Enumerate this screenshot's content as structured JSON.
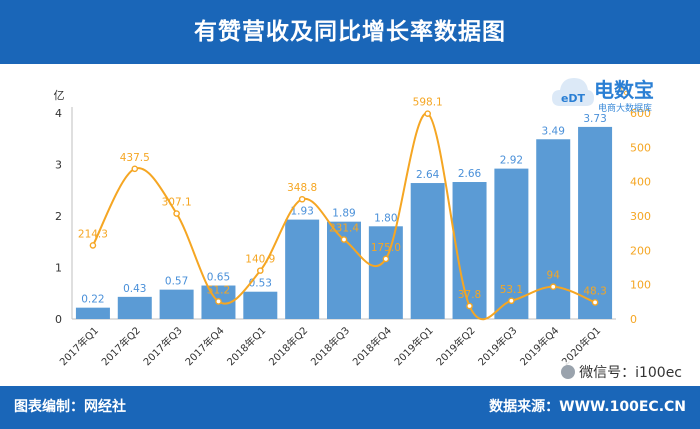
{
  "title": "有赞营收及同比增长率数据图",
  "footer": {
    "source_left": "图表编制：网经社",
    "source_right": "数据来源：WWW.100EC.CN",
    "wechat": "微信号：i100ec"
  },
  "logo": {
    "main": "电数宝",
    "sub": "电商大数据库",
    "mark": "eDT"
  },
  "colors": {
    "header": "#1a66b8",
    "bar": "#5b9bd5",
    "line": "#f5a623",
    "bar_label": "#4a90d9",
    "line_label": "#f5a623"
  },
  "chart_data": {
    "type": "bar",
    "categories": [
      "2017年Q1",
      "2017年Q2",
      "2017年Q3",
      "2017年Q4",
      "2018年Q1",
      "2018年Q2",
      "2018年Q3",
      "2018年Q4",
      "2019年Q1",
      "2019年Q2",
      "2019年Q3",
      "2019年Q4",
      "2020年Q1"
    ],
    "series": [
      {
        "type": "bar",
        "axis": "left",
        "values": [
          0.22,
          0.43,
          0.57,
          0.65,
          0.53,
          1.93,
          1.89,
          1.8,
          2.64,
          2.66,
          2.92,
          3.49,
          3.73
        ],
        "labels": [
          "0.22",
          "0.43",
          "0.57",
          "0.65",
          "0.53",
          "1.93",
          "1.89",
          "1.80",
          "2.64",
          "2.66",
          "2.92",
          "3.49",
          "3.73"
        ]
      },
      {
        "type": "line",
        "axis": "right",
        "smooth": true,
        "values": [
          214.3,
          437.5,
          307.1,
          51.2,
          140.9,
          348.8,
          231.4,
          175.0,
          598.1,
          37.8,
          53.1,
          94.0,
          48.3
        ],
        "labels": [
          "214.3",
          "437.5",
          "307.1",
          "51.2",
          "140.9",
          "348.8",
          "231.4",
          "175.0",
          "598.1",
          "37.8",
          "53.1",
          "94",
          "48.3"
        ]
      }
    ],
    "y_left": {
      "unit": "亿",
      "ylim": [
        0,
        4
      ],
      "ticks": [
        "0",
        "1",
        "2",
        "3",
        "4"
      ]
    },
    "y_right": {
      "unit": "%",
      "ylim": [
        0,
        600
      ],
      "ticks": [
        "0",
        "100",
        "200",
        "300",
        "400",
        "500",
        "600"
      ]
    },
    "grid": false,
    "legend": "none"
  }
}
